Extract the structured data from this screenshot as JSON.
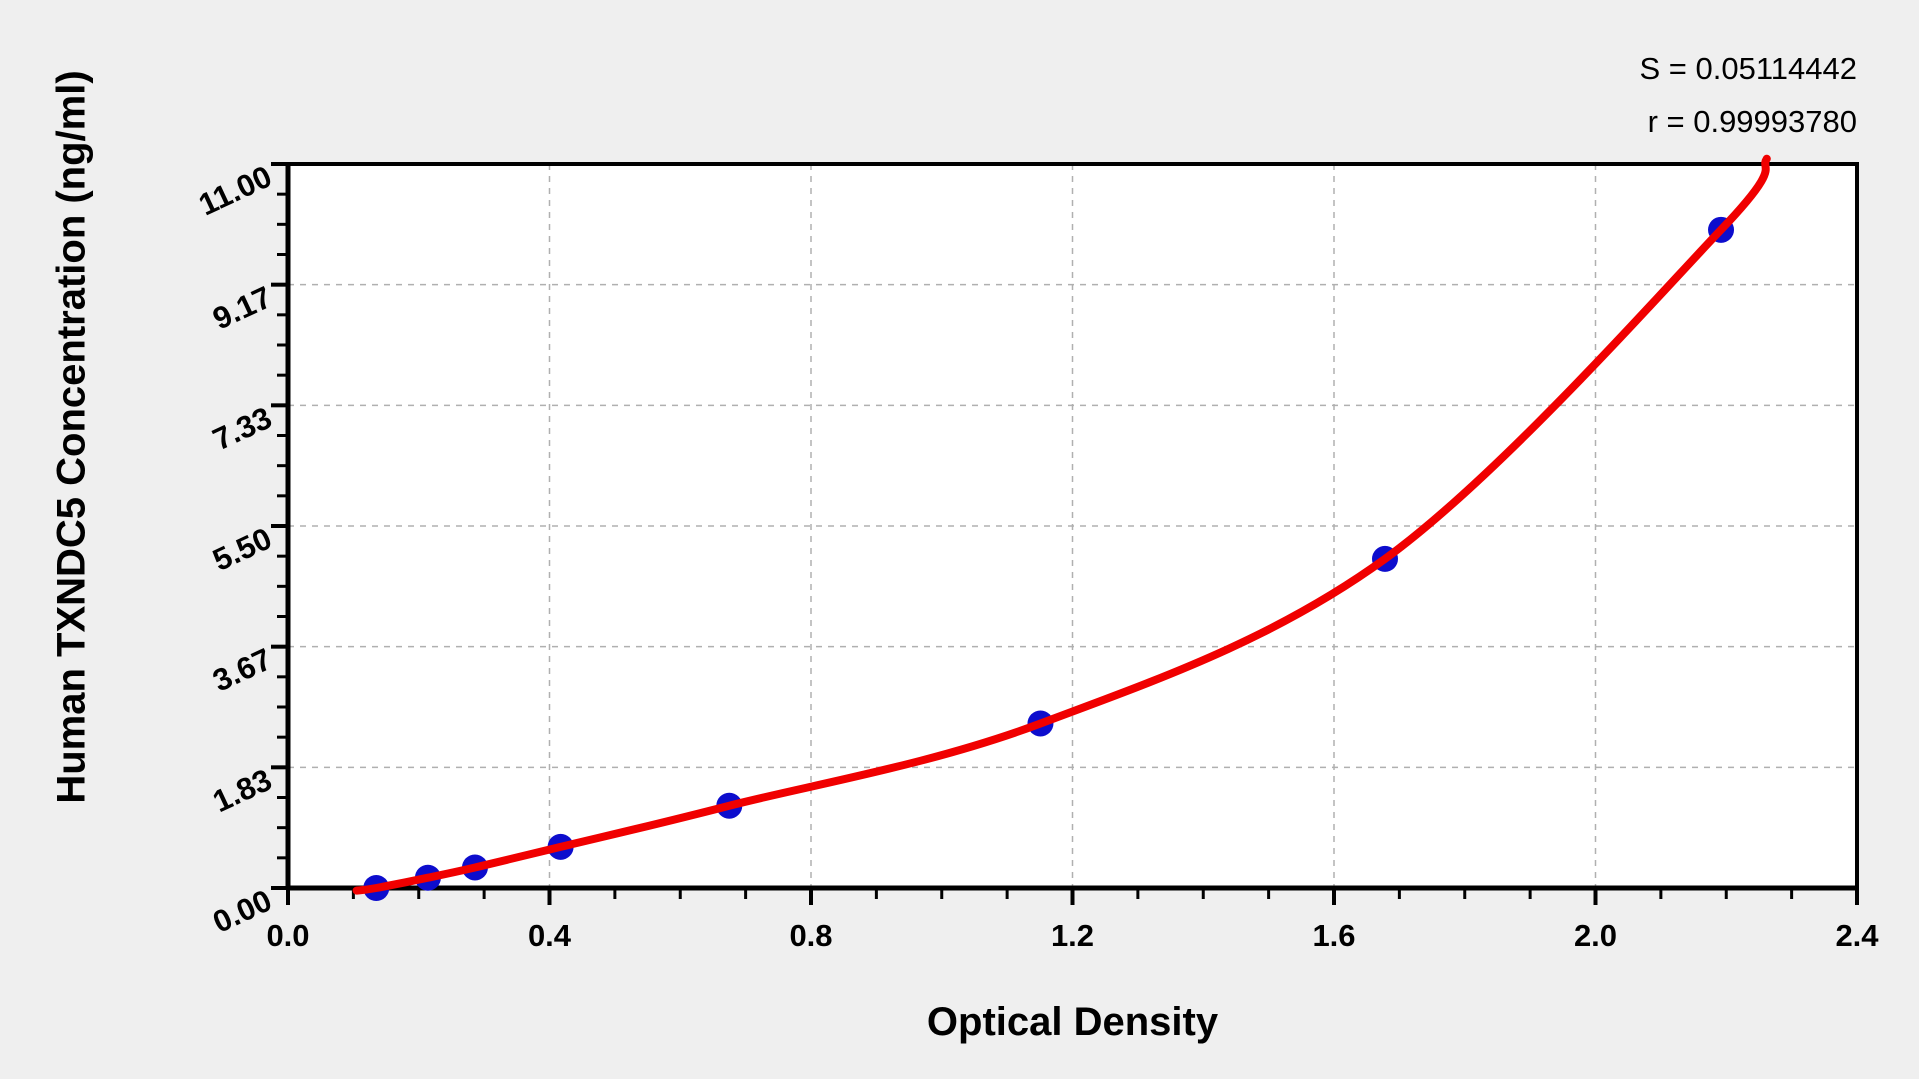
{
  "figure": {
    "stats": {
      "s_label": "S = 0.05114442",
      "r_label": "r = 0.99993780"
    }
  },
  "chart_data": {
    "type": "scatter",
    "title": "",
    "xlabel": "Optical Density",
    "ylabel": "Human TXNDC5 Concentration (ng/ml)",
    "xlim": [
      0,
      2.4
    ],
    "ylim": [
      0,
      11
    ],
    "x_major_tick_labels": [
      "0.0",
      "0.4",
      "0.8",
      "1.2",
      "1.6",
      "2.0",
      "2.4"
    ],
    "y_major_tick_labels": [
      "0.00",
      "1.83",
      "3.67",
      "5.50",
      "7.33",
      "9.17",
      "11.00"
    ],
    "x_minor_divisions_per_major": 4,
    "y_minor_divisions_per_major": 4,
    "grid": {
      "show": true,
      "style": "dashed",
      "on": "major-ticks",
      "color": "#B0B0B0"
    },
    "legend_position": "none",
    "series": [
      {
        "name": "standard-points",
        "type": "scatter",
        "marker": "circle",
        "color": "#0D0DCD",
        "points_od_conc": [
          [
            0.135,
            0.0
          ],
          [
            0.214,
            0.156
          ],
          [
            0.286,
            0.312
          ],
          [
            0.417,
            0.625
          ],
          [
            0.675,
            1.25
          ],
          [
            1.151,
            2.5
          ],
          [
            1.678,
            5.0
          ],
          [
            2.192,
            10.0
          ]
        ]
      },
      {
        "name": "fitted-curve",
        "type": "line",
        "color": "#F00000",
        "start_point": [
          0.105,
          -0.04
        ],
        "end_point": [
          2.262,
          11.08
        ]
      }
    ],
    "stats": {
      "S": "0.05114442",
      "r": "0.99993780"
    }
  },
  "colors": {
    "background": "#EFEFEF",
    "plot_background": "#FFFFFF",
    "axis": "#000000",
    "grid": "#B0B0B0",
    "points": "#0D0DCD",
    "curve": "#F00000"
  }
}
